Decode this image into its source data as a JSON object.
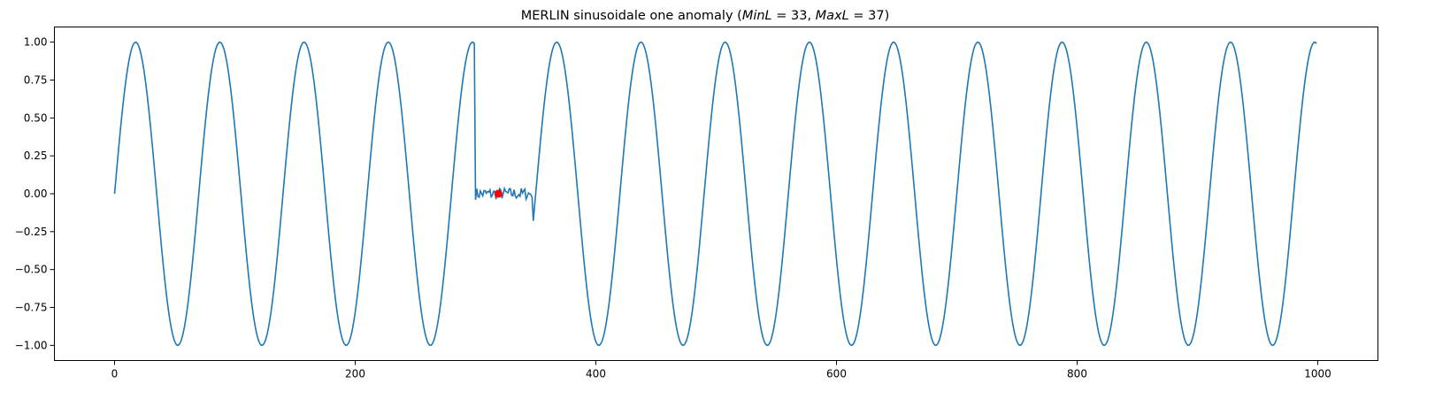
{
  "chart_data": {
    "type": "line",
    "title_prefix": "MERLIN sinusoidale one anomaly (",
    "title_math": [
      {
        "text": "MinL",
        "italic": true
      },
      {
        "text": " = 33, ",
        "italic": false
      },
      {
        "text": "MaxL",
        "italic": true
      },
      {
        "text": " = 37",
        "italic": false
      }
    ],
    "title_suffix": ")",
    "xlabel": "",
    "ylabel": "",
    "xlim": [
      -50,
      1050
    ],
    "ylim": [
      -1.1,
      1.1
    ],
    "x_ticks": [
      0,
      200,
      400,
      600,
      800,
      1000
    ],
    "x_tick_labels": [
      "0",
      "200",
      "400",
      "600",
      "800",
      "1000"
    ],
    "y_ticks": [
      1.0,
      0.75,
      0.5,
      0.25,
      0.0,
      -0.25,
      -0.5,
      -0.75,
      -1.0
    ],
    "y_tick_labels": [
      "1.00",
      "0.75",
      "0.50",
      "0.25",
      "0.00",
      "−0.25",
      "−0.50",
      "−0.75",
      "−1.00"
    ],
    "grid": false,
    "series": [
      {
        "generator": "sine",
        "n_points": 1000,
        "period": 70,
        "amplitude": 1.0,
        "anomaly": {
          "start": 300,
          "end": 347,
          "noise_amplitude": 0.04
        },
        "color": "#1f77b4"
      }
    ],
    "markers": [
      {
        "x": 319,
        "y": 0.0,
        "color": "#ff0000"
      }
    ]
  }
}
